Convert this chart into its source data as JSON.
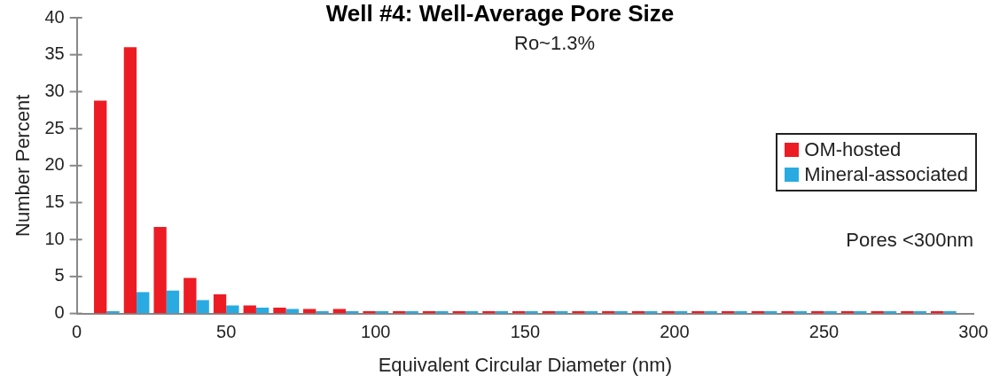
{
  "chart_data": {
    "type": "bar",
    "title": "Well #4: Well-Average Pore Size",
    "xlabel": "Equivalent Circular Diameter (nm)",
    "ylabel": "Number Percent",
    "x": [
      10,
      20,
      30,
      40,
      50,
      60,
      70,
      80,
      90,
      100,
      110,
      120,
      130,
      140,
      150,
      160,
      170,
      180,
      190,
      200,
      210,
      220,
      230,
      240,
      250,
      260,
      270,
      280,
      290
    ],
    "series": [
      {
        "name": "OM-hosted",
        "color": "#ed1c24",
        "values": [
          28.8,
          36,
          11.7,
          4.8,
          2.6,
          1.1,
          0.8,
          0.6,
          0.6,
          0.3,
          0.3,
          0.3,
          0.3,
          0.3,
          0.3,
          0.3,
          0.3,
          0.3,
          0.3,
          0.3,
          0.3,
          0.3,
          0.3,
          0.3,
          0.3,
          0.3,
          0.3,
          0.3,
          0.3
        ]
      },
      {
        "name": "Mineral-associated",
        "color": "#29abe2",
        "values": [
          0.3,
          2.9,
          3.1,
          1.8,
          1.1,
          0.8,
          0.6,
          0.3,
          0.3,
          0.3,
          0.3,
          0.3,
          0.3,
          0.3,
          0.3,
          0.3,
          0.3,
          0.3,
          0.3,
          0.3,
          0.3,
          0.3,
          0.3,
          0.3,
          0.3,
          0.3,
          0.3,
          0.3,
          0.3
        ]
      }
    ],
    "xlim": [
      0,
      300
    ],
    "xticks": [
      0,
      50,
      100,
      150,
      200,
      250,
      300
    ],
    "ylim": [
      0,
      40
    ],
    "yticks": [
      0,
      5,
      10,
      15,
      20,
      25,
      30,
      35,
      40
    ],
    "grid": false,
    "legend": "right",
    "annotations": [
      "Ro~1.3%",
      "Pores <300nm"
    ]
  }
}
